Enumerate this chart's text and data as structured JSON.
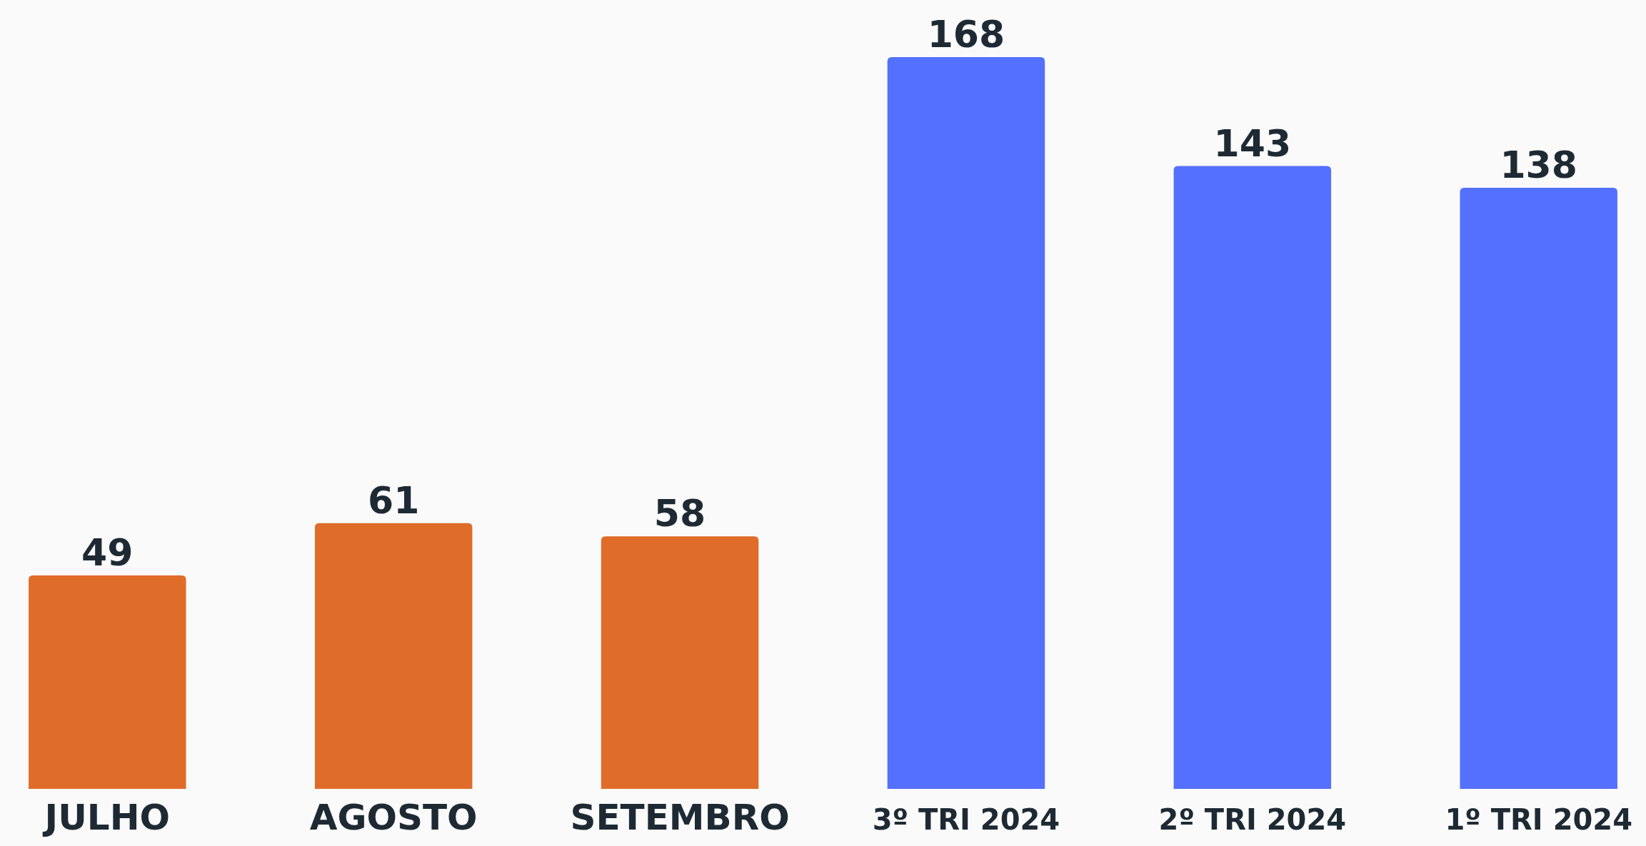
{
  "chart_data": {
    "type": "bar",
    "categories": [
      "JULHO",
      "AGOSTO",
      "SETEMBRO",
      "3º TRI 2024",
      "2º TRI 2024",
      "1º TRI 2024"
    ],
    "values": [
      49,
      61,
      58,
      168,
      143,
      138
    ],
    "colors": [
      "#e06c2a",
      "#e06c2a",
      "#e06c2a",
      "#5470ff",
      "#5470ff",
      "#5470ff"
    ],
    "data_labels": true
  }
}
